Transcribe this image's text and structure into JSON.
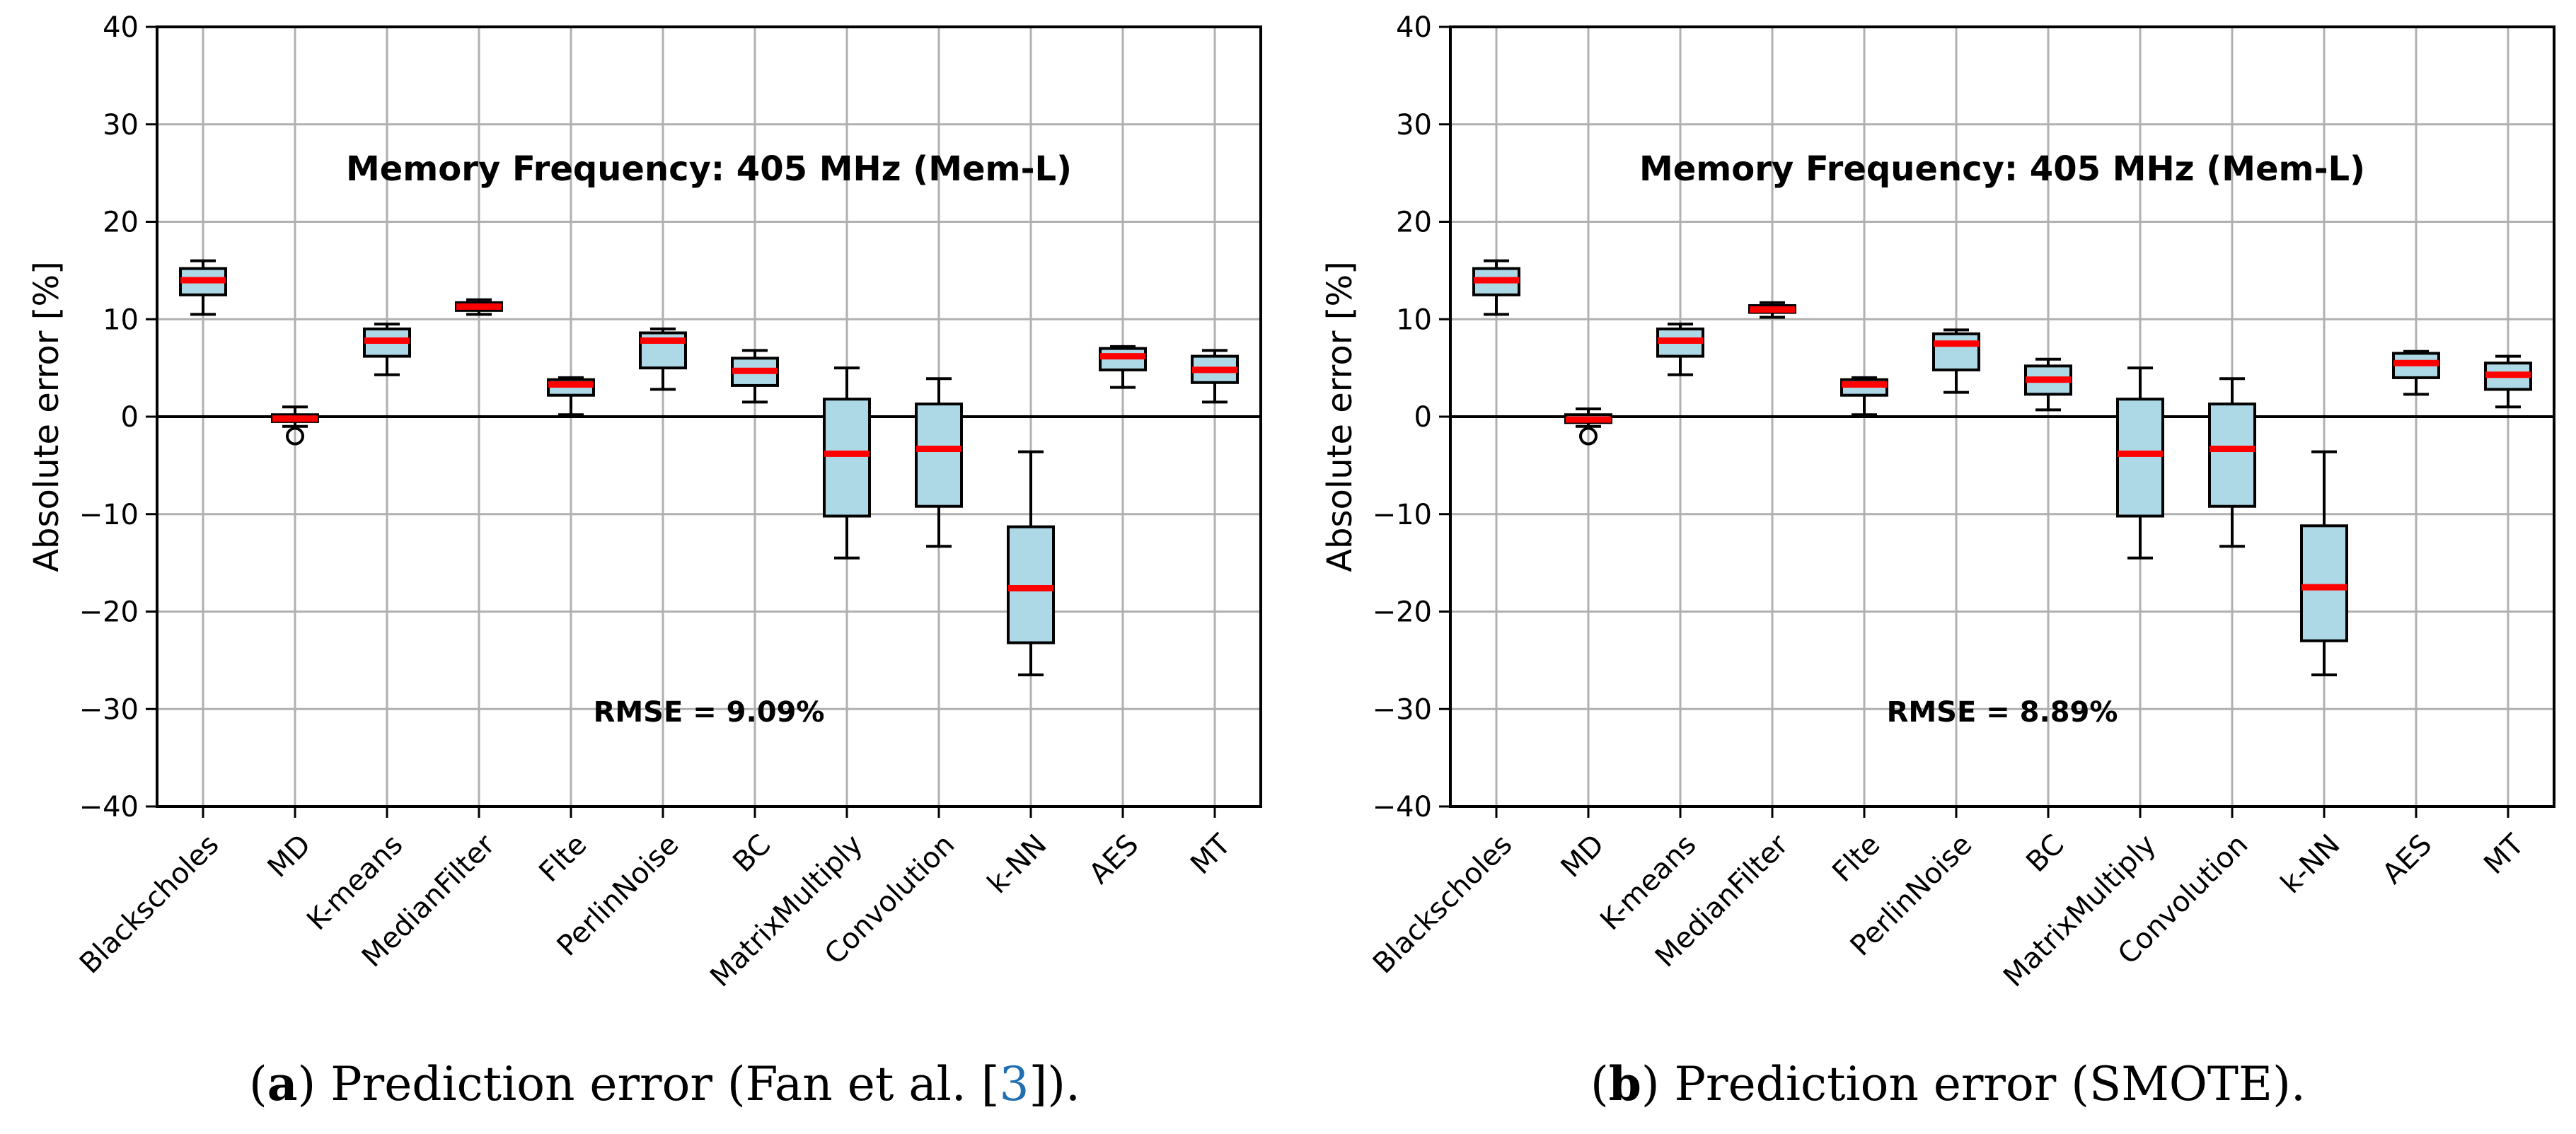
{
  "chart_data": [
    {
      "type": "box",
      "annotation": "Memory Frequency: 405 MHz (Mem-L)",
      "rmse_text": "RMSE = 9.09%",
      "ylabel": "Absolute error [%]",
      "ylim": [
        -40,
        40
      ],
      "yticks": [
        -40,
        -30,
        -20,
        -10,
        0,
        10,
        20,
        30,
        40
      ],
      "grid": true,
      "caption": {
        "letter": "a",
        "open": "(",
        "close": ")",
        "text": " Prediction error (Fan et al. [",
        "ref": "3",
        "end": "])."
      },
      "categories": [
        "Blackscholes",
        "MD",
        "K-means",
        "MedianFilter",
        "Flte",
        "PerlinNoise",
        "BC",
        "MatrixMultiply",
        "Convolution",
        "k-NN",
        "AES",
        "MT"
      ],
      "boxes": [
        {
          "whislo": 10.5,
          "q1": 12.5,
          "med": 14.0,
          "q3": 15.2,
          "whishi": 16.0,
          "fliers": []
        },
        {
          "whislo": -1.0,
          "q1": -0.5,
          "med": -0.2,
          "q3": 0.2,
          "whishi": 1.0,
          "fliers": [
            -2.0
          ]
        },
        {
          "whislo": 4.3,
          "q1": 6.2,
          "med": 7.8,
          "q3": 9.0,
          "whishi": 9.5,
          "fliers": []
        },
        {
          "whislo": 10.5,
          "q1": 10.9,
          "med": 11.3,
          "q3": 11.7,
          "whishi": 12.0,
          "fliers": []
        },
        {
          "whislo": 0.2,
          "q1": 2.2,
          "med": 3.3,
          "q3": 3.8,
          "whishi": 4.0,
          "fliers": []
        },
        {
          "whislo": 2.8,
          "q1": 5.0,
          "med": 7.8,
          "q3": 8.6,
          "whishi": 9.0,
          "fliers": []
        },
        {
          "whislo": 1.5,
          "q1": 3.2,
          "med": 4.7,
          "q3": 6.0,
          "whishi": 6.8,
          "fliers": []
        },
        {
          "whislo": -14.5,
          "q1": -10.2,
          "med": -3.8,
          "q3": 1.8,
          "whishi": 5.0,
          "fliers": []
        },
        {
          "whislo": -13.3,
          "q1": -9.2,
          "med": -3.3,
          "q3": 1.3,
          "whishi": 3.9,
          "fliers": []
        },
        {
          "whislo": -26.5,
          "q1": -23.2,
          "med": -17.6,
          "q3": -11.3,
          "whishi": -3.6,
          "fliers": []
        },
        {
          "whislo": 3.0,
          "q1": 4.8,
          "med": 6.2,
          "q3": 7.0,
          "whishi": 7.2,
          "fliers": []
        },
        {
          "whislo": 1.5,
          "q1": 3.5,
          "med": 4.8,
          "q3": 6.2,
          "whishi": 6.8,
          "fliers": []
        }
      ]
    },
    {
      "type": "box",
      "annotation": "Memory Frequency: 405 MHz (Mem-L)",
      "rmse_text": "RMSE = 8.89%",
      "ylabel": "Absolute error [%]",
      "ylim": [
        -40,
        40
      ],
      "yticks": [
        -40,
        -30,
        -20,
        -10,
        0,
        10,
        20,
        30,
        40
      ],
      "grid": true,
      "caption": {
        "letter": "b",
        "open": "(",
        "close": ")",
        "text": " Prediction error (SMOTE).",
        "ref": "",
        "end": ""
      },
      "categories": [
        "Blackscholes",
        "MD",
        "K-means",
        "MedianFilter",
        "Flte",
        "PerlinNoise",
        "BC",
        "MatrixMultiply",
        "Convolution",
        "k-NN",
        "AES",
        "MT"
      ],
      "boxes": [
        {
          "whislo": 10.5,
          "q1": 12.5,
          "med": 14.0,
          "q3": 15.2,
          "whishi": 16.0,
          "fliers": []
        },
        {
          "whislo": -1.0,
          "q1": -0.6,
          "med": -0.3,
          "q3": 0.2,
          "whishi": 0.8,
          "fliers": [
            -2.0
          ]
        },
        {
          "whislo": 4.3,
          "q1": 6.2,
          "med": 7.8,
          "q3": 9.0,
          "whishi": 9.5,
          "fliers": []
        },
        {
          "whislo": 10.2,
          "q1": 10.7,
          "med": 11.0,
          "q3": 11.4,
          "whishi": 11.7,
          "fliers": []
        },
        {
          "whislo": 0.2,
          "q1": 2.2,
          "med": 3.3,
          "q3": 3.8,
          "whishi": 4.0,
          "fliers": []
        },
        {
          "whislo": 2.5,
          "q1": 4.8,
          "med": 7.5,
          "q3": 8.5,
          "whishi": 8.9,
          "fliers": []
        },
        {
          "whislo": 0.7,
          "q1": 2.3,
          "med": 3.8,
          "q3": 5.2,
          "whishi": 5.9,
          "fliers": []
        },
        {
          "whislo": -14.5,
          "q1": -10.2,
          "med": -3.8,
          "q3": 1.8,
          "whishi": 5.0,
          "fliers": []
        },
        {
          "whislo": -13.3,
          "q1": -9.2,
          "med": -3.3,
          "q3": 1.3,
          "whishi": 3.9,
          "fliers": []
        },
        {
          "whislo": -26.5,
          "q1": -23.0,
          "med": -17.5,
          "q3": -11.2,
          "whishi": -3.6,
          "fliers": []
        },
        {
          "whislo": 2.3,
          "q1": 4.0,
          "med": 5.5,
          "q3": 6.5,
          "whishi": 6.7,
          "fliers": []
        },
        {
          "whislo": 1.0,
          "q1": 2.8,
          "med": 4.3,
          "q3": 5.5,
          "whishi": 6.2,
          "fliers": []
        }
      ]
    }
  ],
  "colors": {
    "box_fill": "#add8e6",
    "median": "#ff0000",
    "grid": "#b0b0b0",
    "axis": "#000000"
  }
}
